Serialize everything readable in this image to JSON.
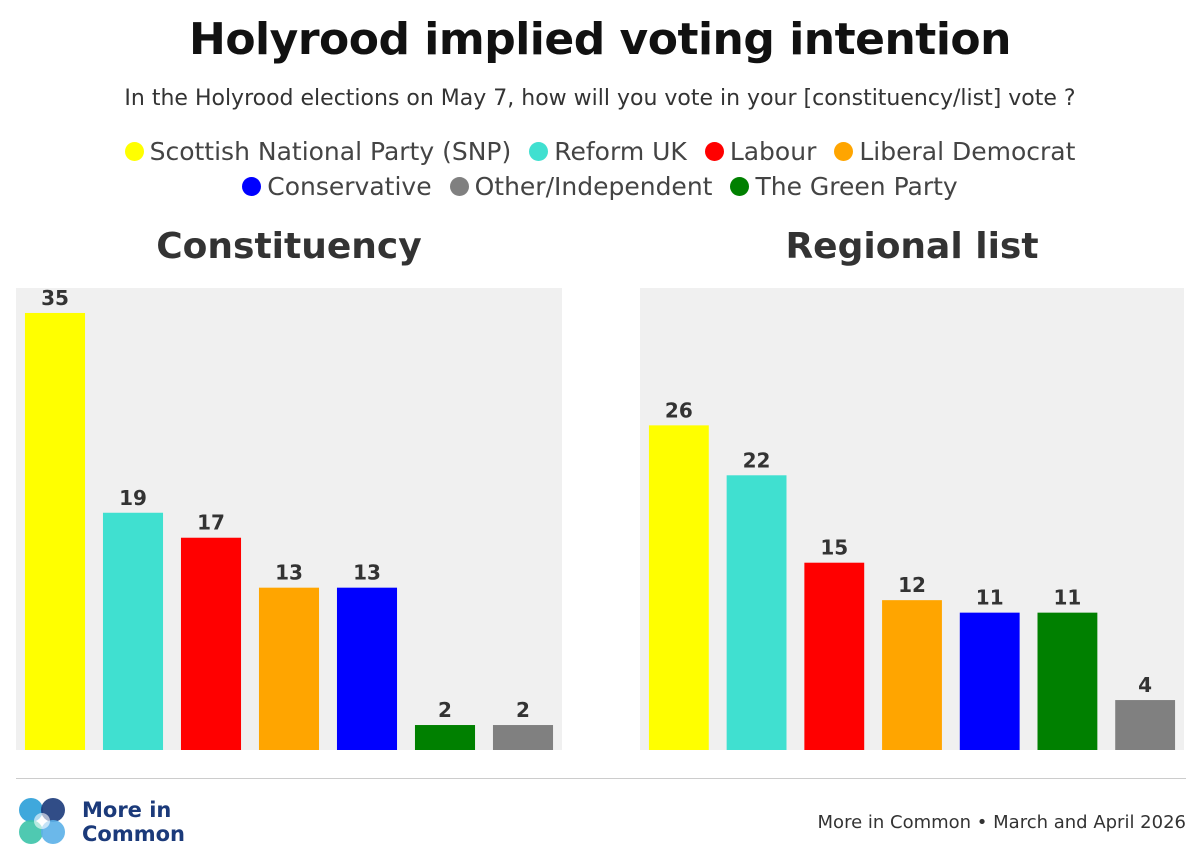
{
  "title": "Holyrood implied voting intention",
  "subtitle": "In the Holyrood elections on May 7, how will you vote in your [constituency/list] vote ?",
  "legend": [
    {
      "label": "Scottish National Party (SNP)",
      "color": "#ffff00"
    },
    {
      "label": "Reform UK",
      "color": "#40e0d0"
    },
    {
      "label": "Labour",
      "color": "#ff0000"
    },
    {
      "label": "Liberal Democrat",
      "color": "#ffa500"
    },
    {
      "label": "Conservative",
      "color": "#0000ff"
    },
    {
      "label": "Other/Independent",
      "color": "#808080"
    },
    {
      "label": "The Green Party",
      "color": "#008000"
    }
  ],
  "chart_data": [
    {
      "type": "bar",
      "title": "Constituency",
      "categories": [
        "Scottish National Party (SNP)",
        "Reform UK",
        "Labour",
        "Liberal Democrat",
        "Conservative",
        "The Green Party",
        "Other/Independent"
      ],
      "values": [
        35,
        19,
        17,
        13,
        13,
        2,
        2
      ],
      "colors": [
        "#ffff00",
        "#40e0d0",
        "#ff0000",
        "#ffa500",
        "#0000ff",
        "#008000",
        "#808080"
      ],
      "ylim": [
        0,
        37
      ],
      "grid": false
    },
    {
      "type": "bar",
      "title": "Regional list",
      "categories": [
        "Scottish National Party (SNP)",
        "Reform UK",
        "Labour",
        "Liberal Democrat",
        "Conservative",
        "The Green Party",
        "Other/Independent"
      ],
      "values": [
        26,
        22,
        15,
        12,
        11,
        11,
        4
      ],
      "colors": [
        "#ffff00",
        "#40e0d0",
        "#ff0000",
        "#ffa500",
        "#0000ff",
        "#008000",
        "#808080"
      ],
      "ylim": [
        0,
        37
      ],
      "grid": false
    }
  ],
  "branding": {
    "logo_line1": "More in",
    "logo_line2": "Common",
    "source": "More in Common • March and April 2026",
    "logo_colors": [
      "#2a9fd8",
      "#1b3a7a",
      "#3cc3a8",
      "#5bb0e8"
    ]
  }
}
